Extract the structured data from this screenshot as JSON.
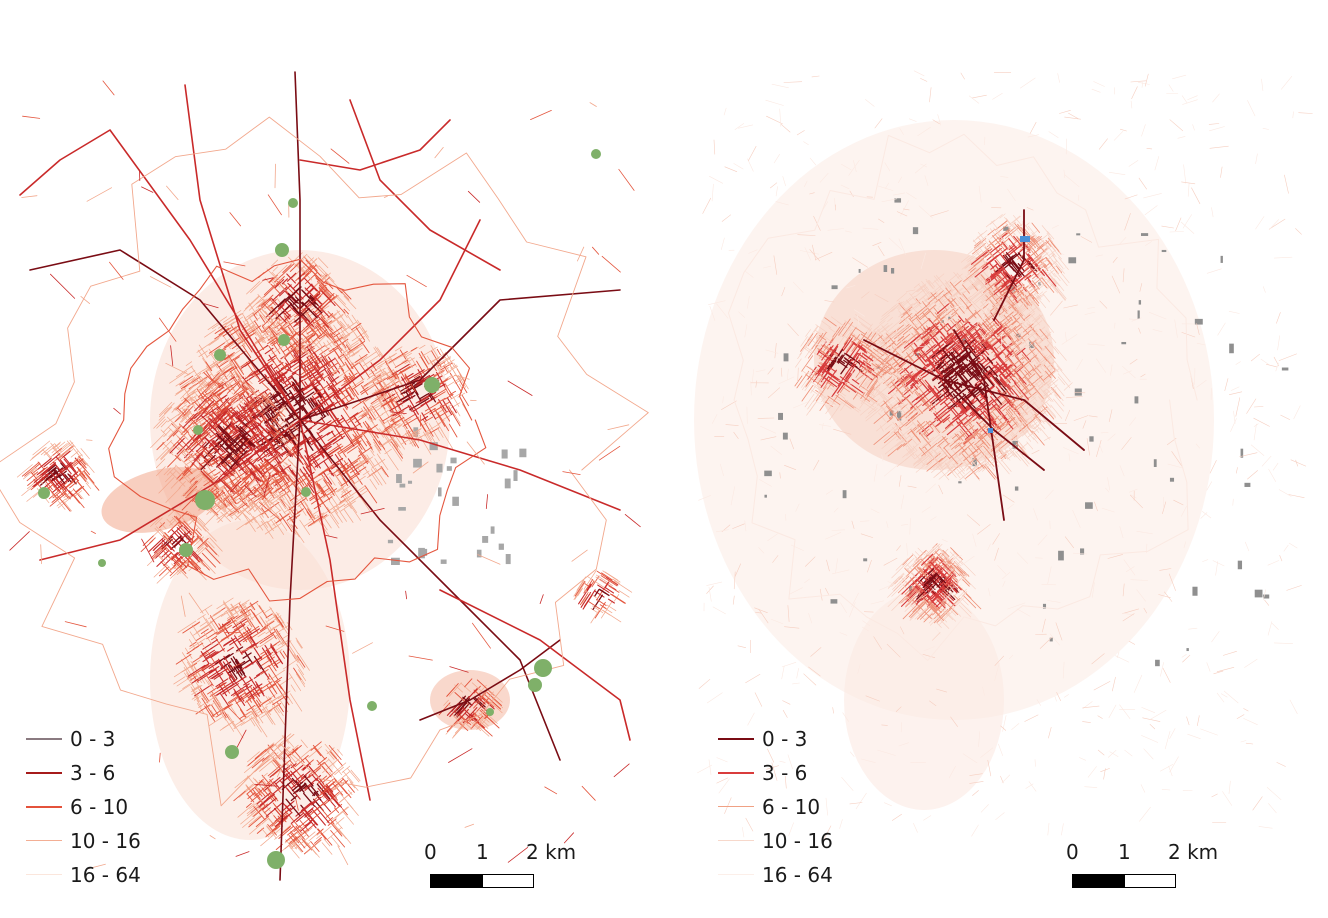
{
  "maps": [
    {
      "id": "left",
      "legend": [
        {
          "label": "0 - 3",
          "color": "#8a7a80"
        },
        {
          "label": "3 - 6",
          "color": "#a61b1b"
        },
        {
          "label": "6 - 10",
          "color": "#e4523b"
        },
        {
          "label": "10 - 16",
          "color": "#f3ae94"
        },
        {
          "label": "16 - 64",
          "color": "#fbe6dc"
        }
      ],
      "scalebar": {
        "ticks": [
          "0",
          "1",
          "2 km"
        ]
      },
      "colors": {
        "dark": "#7a0c14",
        "red": "#c92a2a",
        "mid": "#e4563e",
        "light": "#f2a88d",
        "faint": "#f9ddd2",
        "park": "#7fb069",
        "industry": "#a7a7a7"
      }
    },
    {
      "id": "right",
      "legend": [
        {
          "label": "0 - 3",
          "color": "#7a0c14"
        },
        {
          "label": "3 - 6",
          "color": "#d93c3c"
        },
        {
          "label": "6 - 10",
          "color": "#f0a184"
        },
        {
          "label": "10 - 16",
          "color": "#f7d8cb"
        },
        {
          "label": "16 - 64",
          "color": "#fcefe9"
        }
      ],
      "scalebar": {
        "ticks": [
          "0",
          "1",
          "2 km"
        ]
      },
      "colors": {
        "dark": "#7a0c14",
        "red": "#d83a3a",
        "mid": "#ee8f76",
        "light": "#f6cfc1",
        "faint": "#fbe9e2",
        "water": "#4a90d9",
        "industry": "#8f8f8f"
      }
    }
  ]
}
